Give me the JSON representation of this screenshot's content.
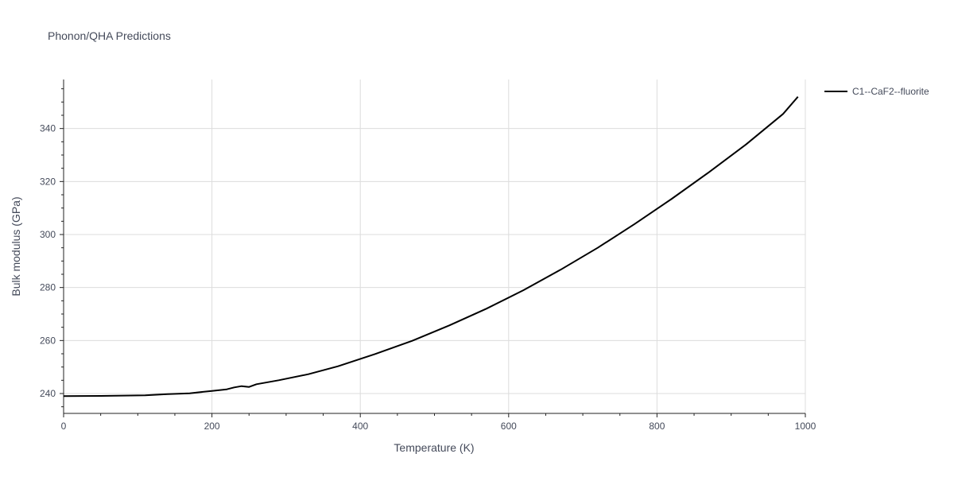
{
  "chart_data": {
    "type": "line",
    "title": "Phonon/QHA Predictions",
    "xlabel": "Temperature (K)",
    "ylabel": "Bulk modulus (GPa)",
    "xlim": [
      0,
      1000
    ],
    "ylim": [
      232.5,
      358.5
    ],
    "xticks": [
      0,
      200,
      400,
      600,
      800,
      1000
    ],
    "yticks": [
      240,
      260,
      280,
      300,
      320,
      340
    ],
    "grid": true,
    "legend_position": "top-right, outside plot",
    "series": [
      {
        "name": "C1--CaF2--fluorite",
        "color": "#000000",
        "x": [
          0,
          50,
          110,
          140,
          170,
          200,
          220,
          230,
          240,
          250,
          260,
          290,
          330,
          370,
          420,
          470,
          520,
          570,
          620,
          670,
          720,
          770,
          820,
          870,
          920,
          970,
          990
        ],
        "y": [
          239.0,
          239.1,
          239.3,
          239.8,
          240.1,
          241.0,
          241.6,
          242.3,
          242.8,
          242.5,
          243.5,
          245.0,
          247.3,
          250.3,
          254.9,
          259.9,
          265.7,
          272.0,
          279.0,
          286.7,
          295.0,
          304.0,
          313.5,
          323.5,
          334.0,
          345.5,
          352.0
        ]
      }
    ]
  }
}
